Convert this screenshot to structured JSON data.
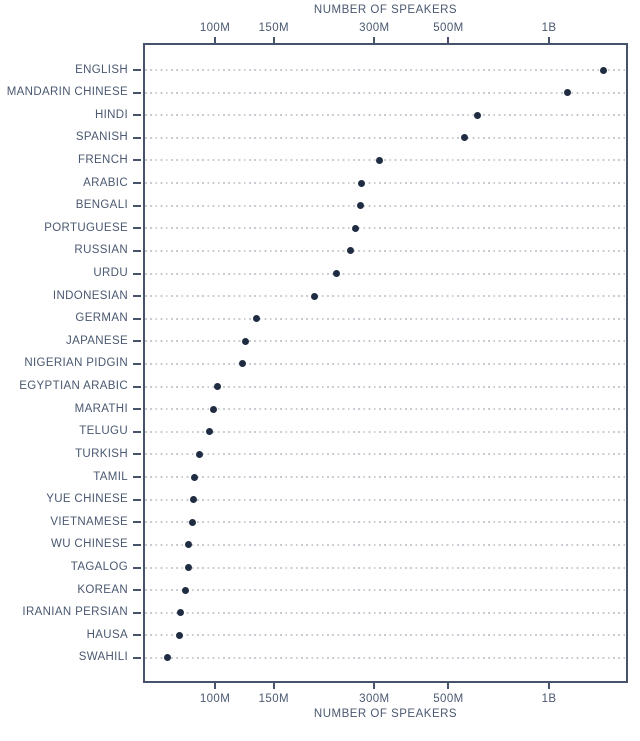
{
  "chart_data": {
    "type": "scatter",
    "variant": "dot-plot",
    "title_top": "NUMBER OF SPEAKERS",
    "title_bottom": "NUMBER OF SPEAKERS",
    "x_scale": "log",
    "x_unit": "speakers",
    "x_range_millions": [
      61,
      1720
    ],
    "x_ticks": [
      {
        "label": "100M",
        "value_millions": 100
      },
      {
        "label": "150M",
        "value_millions": 150
      },
      {
        "label": "300M",
        "value_millions": 300
      },
      {
        "label": "500M",
        "value_millions": 500
      },
      {
        "label": "1B",
        "value_millions": 1000
      }
    ],
    "points": [
      {
        "label": "ENGLISH",
        "value_millions": 1456
      },
      {
        "label": "MANDARIN CHINESE",
        "value_millions": 1138
      },
      {
        "label": "HINDI",
        "value_millions": 609
      },
      {
        "label": "SPANISH",
        "value_millions": 559
      },
      {
        "label": "FRENCH",
        "value_millions": 310
      },
      {
        "label": "ARABIC",
        "value_millions": 274
      },
      {
        "label": "BENGALI",
        "value_millions": 273
      },
      {
        "label": "PORTUGUESE",
        "value_millions": 264
      },
      {
        "label": "RUSSIAN",
        "value_millions": 255
      },
      {
        "label": "URDU",
        "value_millions": 231
      },
      {
        "label": "INDONESIAN",
        "value_millions": 199
      },
      {
        "label": "GERMAN",
        "value_millions": 133
      },
      {
        "label": "JAPANESE",
        "value_millions": 123
      },
      {
        "label": "NIGERIAN PIDGIN",
        "value_millions": 121
      },
      {
        "label": "EGYPTIAN ARABIC",
        "value_millions": 102
      },
      {
        "label": "MARATHI",
        "value_millions": 99
      },
      {
        "label": "TELUGU",
        "value_millions": 96
      },
      {
        "label": "TURKISH",
        "value_millions": 90
      },
      {
        "label": "TAMIL",
        "value_millions": 86.6
      },
      {
        "label": "YUE CHINESE",
        "value_millions": 86.4
      },
      {
        "label": "VIETNAMESE",
        "value_millions": 85.8
      },
      {
        "label": "WU CHINESE",
        "value_millions": 83.4
      },
      {
        "label": "TAGALOG",
        "value_millions": 83.1
      },
      {
        "label": "KOREAN",
        "value_millions": 81.7
      },
      {
        "label": "IRANIAN PERSIAN",
        "value_millions": 78.6
      },
      {
        "label": "HAUSA",
        "value_millions": 78.5
      },
      {
        "label": "SWAHILI",
        "value_millions": 72
      }
    ],
    "legend": "none",
    "grid": "dotted-horizontal-leaders"
  },
  "colors": {
    "dot": "#1f2c42",
    "axis": "#46536a",
    "text": "#4a5870",
    "leader_line": "#c9ccd2",
    "background": "#ffffff"
  }
}
